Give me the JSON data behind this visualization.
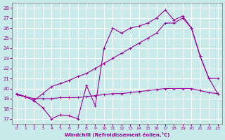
{
  "xlabel": "Windchill (Refroidissement éolien,°C)",
  "xlim": [
    -0.5,
    23.5
  ],
  "ylim": [
    16.5,
    28.5
  ],
  "xticks": [
    0,
    1,
    2,
    3,
    4,
    5,
    6,
    7,
    8,
    9,
    10,
    11,
    12,
    13,
    14,
    15,
    16,
    17,
    18,
    19,
    20,
    21,
    22,
    23
  ],
  "yticks": [
    17,
    18,
    19,
    20,
    21,
    22,
    23,
    24,
    25,
    26,
    27,
    28
  ],
  "bg_color": "#c8eaea",
  "line_color": "#990099",
  "grid_color": "#ffffff",
  "series1_x": [
    0,
    1,
    2,
    3,
    4,
    5,
    6,
    7,
    8,
    9,
    10,
    11,
    12,
    13,
    14,
    15,
    16,
    17,
    18,
    19,
    20,
    21,
    22,
    23
  ],
  "series1_y": [
    19.4,
    19.2,
    19.0,
    19.0,
    19.0,
    19.1,
    19.1,
    19.1,
    19.2,
    19.3,
    19.4,
    19.5,
    19.5,
    19.6,
    19.7,
    19.8,
    19.9,
    20.0,
    20.0,
    20.0,
    20.0,
    19.8,
    19.6,
    19.5
  ],
  "series2_x": [
    0,
    1,
    2,
    3,
    4,
    5,
    6,
    7,
    8,
    9,
    10,
    11,
    12,
    13,
    14,
    15,
    16,
    17,
    18,
    19,
    20,
    21,
    22,
    23
  ],
  "series2_y": [
    19.4,
    19.2,
    18.8,
    19.5,
    20.2,
    20.5,
    20.8,
    21.2,
    21.5,
    22.0,
    22.5,
    23.0,
    23.5,
    24.0,
    24.5,
    25.0,
    25.5,
    26.5,
    26.5,
    27.0,
    26.0,
    23.2,
    21.0,
    19.5
  ],
  "series3_x": [
    0,
    1,
    2,
    3,
    4,
    5,
    6,
    7,
    8,
    9,
    10,
    11,
    12,
    13,
    14,
    15,
    16,
    17,
    18,
    19,
    20,
    21,
    22,
    23
  ],
  "series3_y": [
    19.5,
    19.2,
    18.8,
    18.1,
    17.0,
    17.4,
    17.3,
    17.0,
    20.3,
    18.3,
    24.0,
    26.0,
    25.5,
    26.0,
    26.2,
    26.5,
    27.0,
    27.8,
    26.8,
    27.2,
    26.0,
    23.2,
    21.0,
    21.0
  ]
}
